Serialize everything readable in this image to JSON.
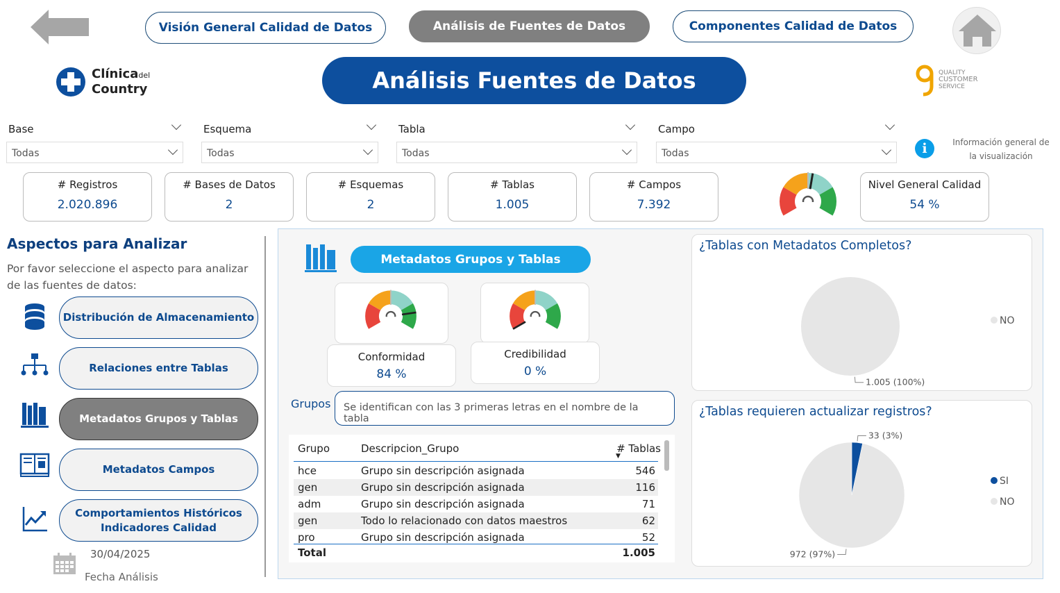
{
  "nav": {
    "back_icon": "arrow-left-icon",
    "tab1": "Visión General Calidad de Datos",
    "tab2": "Análisis de Fuentes de Datos",
    "tab3": "Componentes Calidad de Datos",
    "home_icon": "home-icon"
  },
  "header": {
    "title": "Análisis Fuentes de Datos",
    "logo_left_1": "Clínica",
    "logo_left_del": "del",
    "logo_left_2": "Country",
    "logo_right_1": "QUALITY",
    "logo_right_2": "CUSTOMER",
    "logo_right_3": "SERVICE"
  },
  "filters": [
    {
      "label": "Base",
      "value": "Todas"
    },
    {
      "label": "Esquema",
      "value": "Todas"
    },
    {
      "label": "Tabla",
      "value": "Todas"
    },
    {
      "label": "Campo",
      "value": "Todas"
    }
  ],
  "info": {
    "text": "Información general de la visualización"
  },
  "kpis": [
    {
      "label": "# Registros",
      "value": "2.020.896"
    },
    {
      "label": "# Bases de Datos",
      "value": "2"
    },
    {
      "label": "# Esquemas",
      "value": "2"
    },
    {
      "label": "# Tablas",
      "value": "1.005"
    },
    {
      "label": "# Campos",
      "value": "7.392"
    }
  ],
  "quality": {
    "label": "Nivel General Calidad",
    "value": "54 %",
    "level": 0.54
  },
  "aspects": {
    "title": "Aspectos para Analizar",
    "subtitle": "Por favor seleccione el aspecto para analizar de las fuentes de datos:",
    "items": [
      {
        "label": "Distribución de Almacenamiento",
        "icon": "database-icon"
      },
      {
        "label": "Relaciones entre Tablas",
        "icon": "hierarchy-icon"
      },
      {
        "label": "Metadatos Grupos y Tablas",
        "icon": "books-icon"
      },
      {
        "label": "Metadatos Campos",
        "icon": "open-book-icon"
      },
      {
        "label": "Comportamientos Históricos Indicadores Calidad",
        "icon": "trend-chart-icon"
      }
    ],
    "date": "30/04/2025",
    "date_label": "Fecha Análisis"
  },
  "panel": {
    "title": "Metadatos Grupos y Tablas",
    "gauges": [
      {
        "label": "Conformidad",
        "value": "84 %",
        "level": 0.84
      },
      {
        "label": "Credibilidad",
        "value": "0 %",
        "level": 0.0
      }
    ],
    "groups_label": "Grupos",
    "groups_placeholder": "Se identifican con las 3 primeras letras en el nombre de la tabla",
    "table": {
      "headers": [
        "Grupo",
        "Descripcion_Grupo",
        "# Tablas"
      ],
      "rows": [
        [
          "hce",
          "Grupo sin descripción asignada",
          "546"
        ],
        [
          "gen",
          "Grupo sin descripción asignada",
          "116"
        ],
        [
          "adm",
          "Grupo sin descripción asignada",
          "71"
        ],
        [
          "gen",
          "Todo lo relacionado con datos maestros",
          "62"
        ],
        [
          "pro",
          "Grupo sin descripción asignada",
          "52"
        ]
      ],
      "total_label": "Total",
      "total_value": "1.005"
    }
  },
  "chart_data": [
    {
      "type": "pie",
      "title": "¿Tablas con Metadatos Completos?",
      "categories": [
        "NO"
      ],
      "values": [
        1005
      ],
      "data_labels": [
        "1.005 (100%)"
      ],
      "colors": [
        "#e6e6e6"
      ],
      "legend": "right"
    },
    {
      "type": "pie",
      "title": "¿Tablas requieren actualizar registros?",
      "categories": [
        "SI",
        "NO"
      ],
      "values": [
        33,
        972
      ],
      "data_labels": [
        "33 (3%)",
        "972 (97%)"
      ],
      "colors": [
        "#0d4f9e",
        "#e6e6e6"
      ],
      "legend": "right"
    }
  ]
}
